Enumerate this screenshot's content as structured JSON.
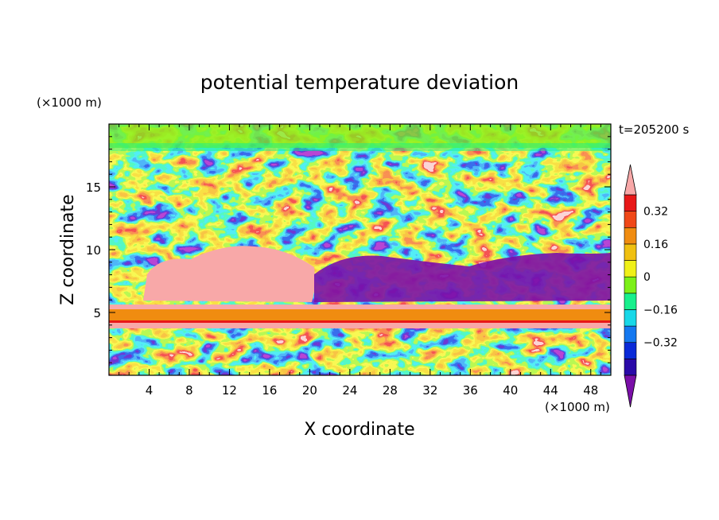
{
  "chart_data": {
    "type": "heatmap",
    "title": "potential temperature deviation",
    "time_label": "t=205200 s",
    "xlabel": "X coordinate",
    "ylabel": "Z coordinate",
    "x_units": "(×1000 m)",
    "y_units": "(×1000 m)",
    "xlim": [
      0,
      50
    ],
    "ylim": [
      0,
      20
    ],
    "x_ticks": [
      "4",
      "8",
      "12",
      "16",
      "20",
      "24",
      "28",
      "32",
      "36",
      "40",
      "44",
      "48"
    ],
    "x_tick_values": [
      4,
      8,
      12,
      16,
      20,
      24,
      28,
      32,
      36,
      40,
      44,
      48
    ],
    "y_ticks": [
      "5",
      "10",
      "15"
    ],
    "y_tick_values": [
      5,
      10,
      15
    ],
    "colorbar": {
      "levels": [
        -0.48,
        -0.4,
        -0.32,
        -0.24,
        -0.16,
        -0.08,
        0,
        0.08,
        0.16,
        0.24,
        0.32,
        0.4
      ],
      "labeled_ticks": [
        "0.32",
        "0.16",
        "0",
        "−0.16",
        "−0.32"
      ],
      "labeled_tick_values": [
        0.32,
        0.16,
        0,
        -0.16,
        -0.32
      ],
      "extend": "both",
      "colors": [
        "#7a0fa8",
        "#2a0aa8",
        "#0a2ad8",
        "#1478f0",
        "#18d8e8",
        "#18f08c",
        "#7cf018",
        "#f0f018",
        "#f0c010",
        "#f08c10",
        "#f04818",
        "#e81818",
        "#f8a8a8"
      ]
    }
  }
}
